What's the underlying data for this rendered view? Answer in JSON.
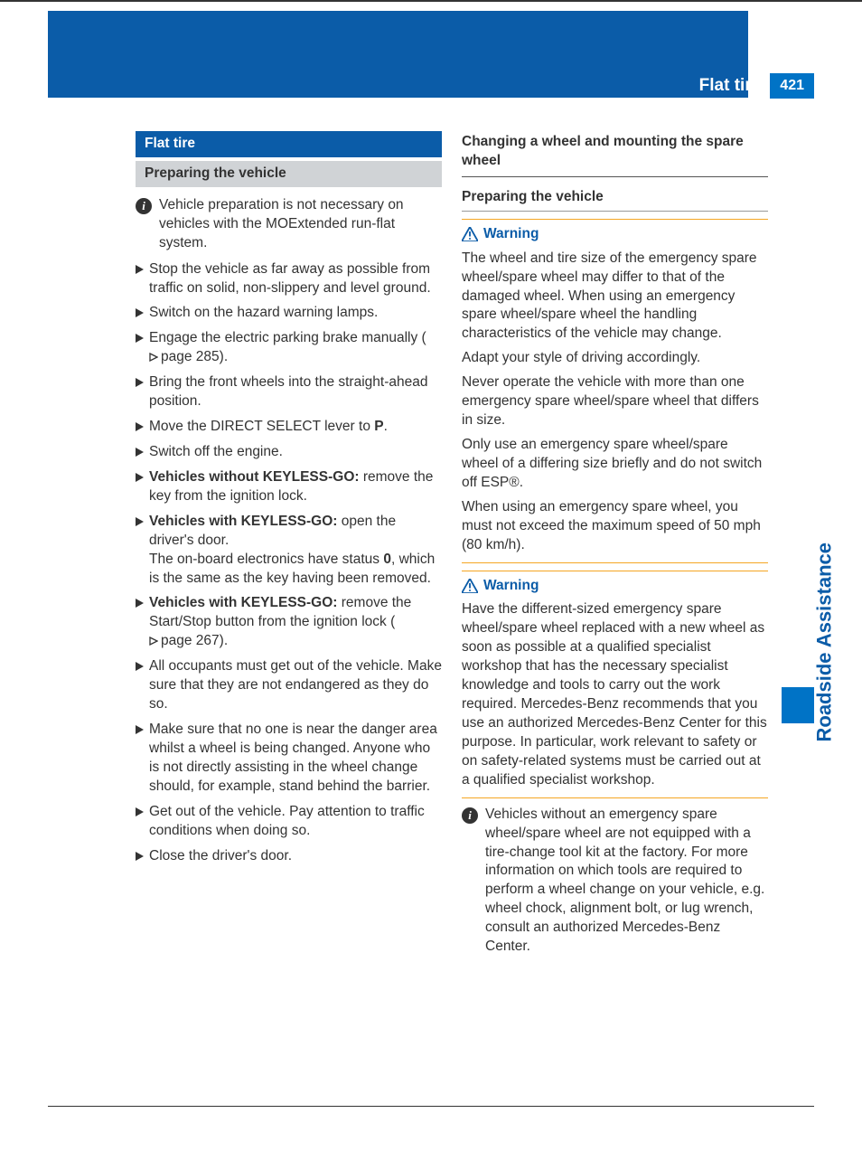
{
  "colors": {
    "brand_blue": "#0b5ca8",
    "bright_blue": "#0073c6",
    "grey_h2": "#d0d3d6",
    "text": "#333333",
    "warning_border": "#f5a623",
    "white": "#ffffff"
  },
  "fonts": {
    "body_size_pt": 11,
    "heading_size_pt": 11,
    "sidetab_size_pt": 16
  },
  "header": {
    "title": "Flat tire",
    "page_number": "421"
  },
  "side_tab": "Roadside Assistance",
  "left": {
    "h1": "Flat tire",
    "h2": "Preparing the vehicle",
    "info": "Vehicle preparation is not necessary on vehicles with the MOExtended run-flat system.",
    "bullets": [
      {
        "text": "Stop the vehicle as far away as possible from traffic on solid, non-slippery and level ground."
      },
      {
        "text": "Switch on the hazard warning lamps."
      },
      {
        "text": "Engage the electric parking brake manually (",
        "pageref": "page 285",
        "after": ")."
      },
      {
        "text": "Bring the front wheels into the straight-ahead position."
      },
      {
        "html": "Move the DIRECT SELECT lever to <b>P</b>."
      },
      {
        "text": "Switch off the engine."
      },
      {
        "html": "<b>Vehicles without KEYLESS-GO:</b> remove the key from the ignition lock."
      },
      {
        "html": "<b>Vehicles with KEYLESS-GO:</b> open the driver's door.<br>The on-board electronics have status <b>0</b>, which is the same as the key having been removed."
      },
      {
        "html": "<b>Vehicles with KEYLESS-GO:</b> remove the Start/Stop button from the ignition lock (",
        "pageref": "page 267",
        "after": ")."
      },
      {
        "text": "All occupants must get out of the vehicle. Make sure that they are not endangered as they do so."
      },
      {
        "text": "Make sure that no one is near the danger area whilst a wheel is being changed. Anyone who is not directly assisting in the wheel change should, for example, stand behind the barrier."
      },
      {
        "text": "Get out of the vehicle. Pay attention to traffic conditions when doing so."
      },
      {
        "text": "Close the driver's door."
      }
    ]
  },
  "right": {
    "h2": "Changing a wheel and mounting the spare wheel",
    "h3": "Preparing the vehicle",
    "warning_label": "Warning",
    "warn1": [
      "The wheel and tire size of the emergency spare wheel/spare wheel may differ to that of the damaged wheel. When using an emergency spare wheel/spare wheel the handling characteristics of the vehicle may change.",
      "Adapt your style of driving accordingly.",
      "Never operate the vehicle with more than one emergency spare wheel/spare wheel that differs in size.",
      "Only use an emergency spare wheel/spare wheel of a differing size briefly and do not switch off ESP®.",
      "When using an emergency spare wheel, you must not exceed the maximum speed of 50 mph (80 km/h)."
    ],
    "warn2": [
      "Have the different-sized emergency spare wheel/spare wheel replaced with a new wheel as soon as possible at a qualified specialist workshop that has the necessary specialist knowledge and tools to carry out the work required. Mercedes-Benz recommends that you use an authorized Mercedes-Benz Center for this purpose. In particular, work relevant to safety or on safety-related systems must be carried out at a qualified specialist workshop."
    ],
    "info": "Vehicles without an emergency spare wheel/spare wheel are not equipped with a tire-change tool kit at the factory. For more information on which tools are required to perform a wheel change on your vehicle, e.g. wheel chock, alignment bolt, or lug wrench, consult an authorized Mercedes-Benz Center."
  }
}
